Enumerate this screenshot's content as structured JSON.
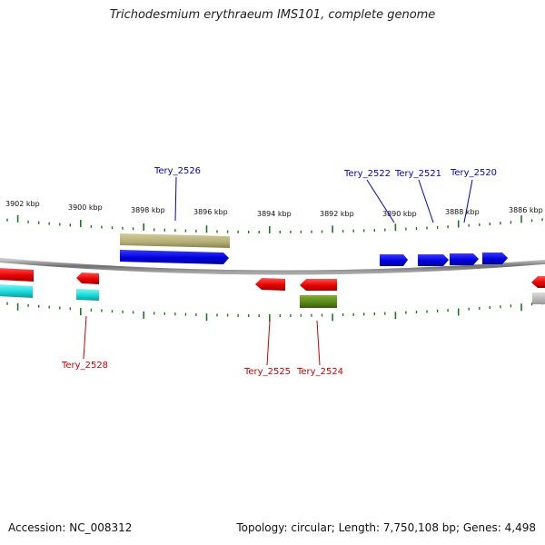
{
  "title": "Trichodesmium erythraeum IMS101, complete genome",
  "footer": {
    "accession": "Accession: NC_008312",
    "summary": "Topology: circular; Length: 7,750,108 bp; Genes: 4,498"
  },
  "scale_labels": [
    "3902 kbp",
    "3900 kbp",
    "3898 kbp",
    "3896 kbp",
    "3894 kbp",
    "3892 kbp",
    "3890 kbp",
    "3888 kbp",
    "3886 kbp"
  ],
  "gene_labels": [
    {
      "text": "Tery_2526",
      "color": "#0000cc"
    },
    {
      "text": "Tery_2522",
      "color": "#0000cc"
    },
    {
      "text": "Tery_2521",
      "color": "#0000cc"
    },
    {
      "text": "Tery_2520",
      "color": "#0000cc"
    },
    {
      "text": "Tery_2528",
      "color": "#cc0000"
    },
    {
      "text": "Tery_2525",
      "color": "#cc0000"
    },
    {
      "text": "Tery_2524",
      "color": "#cc0000"
    }
  ],
  "colors": {
    "forward_cds": "#1010ee",
    "reverse_cds": "#ee1010",
    "cyan_feature": "#22dddd",
    "khaki_feature": "#b5b07a",
    "olive_feature": "#5f8a1c",
    "gray_feature": "#bbbbbb",
    "tick": "#1a7a1a",
    "backbone": "#808080"
  }
}
